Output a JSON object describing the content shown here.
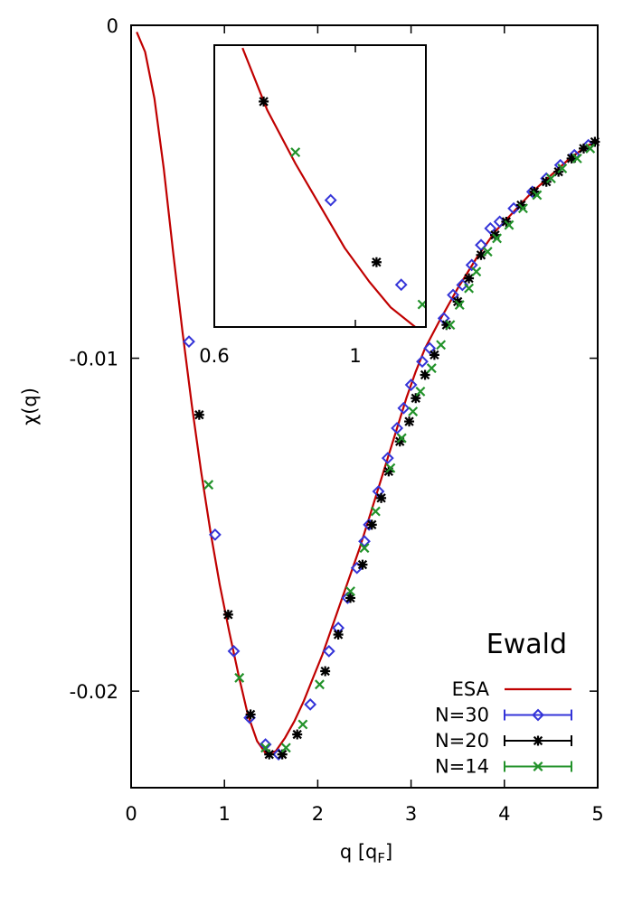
{
  "chart_data": {
    "type": "scatter",
    "title": "",
    "xlabel": "q [q",
    "xlabel_sub": "F",
    "xlabel_close": "]",
    "ylabel": "χ(q)",
    "xlim": [
      0,
      5
    ],
    "ylim": [
      -0.0229,
      0
    ],
    "x_ticks": [
      0,
      1,
      2,
      3,
      4,
      5
    ],
    "x_tick_labels": [
      "0",
      "1",
      "2",
      "3",
      "4",
      "5"
    ],
    "y_ticks": [
      0,
      -0.01,
      -0.02
    ],
    "y_tick_labels": [
      "0",
      "-0.01",
      "-0.02"
    ],
    "annotation": "Ewald",
    "legend": [
      {
        "label": "ESA",
        "marker": "line",
        "color": "#c00000"
      },
      {
        "label": "N=30",
        "marker": "diamond",
        "color": "#3434d8"
      },
      {
        "label": "N=20",
        "marker": "asterisk",
        "color": "#000000"
      },
      {
        "label": "N=14",
        "marker": "cross",
        "color": "#22922a"
      }
    ],
    "curve": {
      "name": "ESA",
      "color": "#c00000",
      "x": [
        0.06,
        0.15,
        0.25,
        0.35,
        0.45,
        0.55,
        0.65,
        0.75,
        0.85,
        0.95,
        1.05,
        1.15,
        1.25,
        1.35,
        1.45,
        1.55,
        1.65,
        1.75,
        1.85,
        1.95,
        2.05,
        2.15,
        2.25,
        2.35,
        2.45,
        2.55,
        2.65,
        2.75,
        2.85,
        2.95,
        3.05,
        3.15,
        3.3,
        3.5,
        3.7,
        3.9,
        4.1,
        4.3,
        4.5,
        4.7,
        4.9,
        5.0
      ],
      "y": [
        -0.0002,
        -0.0008,
        -0.0022,
        -0.0043,
        -0.0068,
        -0.0092,
        -0.0114,
        -0.0134,
        -0.0152,
        -0.0168,
        -0.0182,
        -0.0195,
        -0.0207,
        -0.0215,
        -0.0219,
        -0.0218,
        -0.0214,
        -0.0209,
        -0.0203,
        -0.0196,
        -0.0189,
        -0.0181,
        -0.0173,
        -0.0165,
        -0.0157,
        -0.0148,
        -0.0139,
        -0.013,
        -0.0121,
        -0.0112,
        -0.0104,
        -0.0097,
        -0.0089,
        -0.0079,
        -0.007,
        -0.0062,
        -0.0056,
        -0.005,
        -0.0045,
        -0.004,
        -0.0036,
        -0.0035
      ]
    },
    "series": [
      {
        "name": "N=30",
        "marker": "diamond",
        "color": "#3434d8",
        "x": [
          0.62,
          0.9,
          1.1,
          1.27,
          1.44,
          1.58,
          1.92,
          2.12,
          2.22,
          2.32,
          2.42,
          2.5,
          2.55,
          2.65,
          2.75,
          2.85,
          2.92,
          3.0,
          3.12,
          3.2,
          3.35,
          3.45,
          3.55,
          3.65,
          3.75,
          3.85,
          3.95,
          4.1,
          4.3,
          4.45,
          4.6,
          4.75,
          4.9
        ],
        "y": [
          -0.0095,
          -0.0153,
          -0.0188,
          -0.0208,
          -0.0216,
          -0.0219,
          -0.0204,
          -0.0188,
          -0.0181,
          -0.0172,
          -0.0163,
          -0.0155,
          -0.015,
          -0.014,
          -0.013,
          -0.0121,
          -0.0115,
          -0.0108,
          -0.0101,
          -0.0097,
          -0.0088,
          -0.0081,
          -0.0078,
          -0.0072,
          -0.0066,
          -0.0061,
          -0.0059,
          -0.0055,
          -0.005,
          -0.0046,
          -0.0042,
          -0.0039,
          -0.0036
        ]
      },
      {
        "name": "N=20",
        "marker": "asterisk",
        "color": "#000000",
        "x": [
          0.73,
          1.04,
          1.28,
          1.48,
          1.62,
          1.78,
          2.08,
          2.22,
          2.35,
          2.48,
          2.58,
          2.68,
          2.76,
          2.88,
          2.98,
          3.05,
          3.15,
          3.25,
          3.38,
          3.5,
          3.62,
          3.75,
          3.9,
          4.02,
          4.18,
          4.32,
          4.45,
          4.58,
          4.72,
          4.85,
          4.97
        ],
        "y": [
          -0.0117,
          -0.0177,
          -0.0207,
          -0.0219,
          -0.0219,
          -0.0213,
          -0.0194,
          -0.0183,
          -0.0172,
          -0.0162,
          -0.015,
          -0.0142,
          -0.0134,
          -0.0125,
          -0.0119,
          -0.0112,
          -0.0105,
          -0.0099,
          -0.009,
          -0.0083,
          -0.0076,
          -0.0069,
          -0.0063,
          -0.0059,
          -0.0054,
          -0.005,
          -0.0047,
          -0.0044,
          -0.004,
          -0.0037,
          -0.0035
        ]
      },
      {
        "name": "N=14",
        "marker": "cross",
        "color": "#22922a",
        "x": [
          0.83,
          1.16,
          1.44,
          1.66,
          1.84,
          2.02,
          2.35,
          2.5,
          2.62,
          2.78,
          2.9,
          3.02,
          3.1,
          3.22,
          3.32,
          3.42,
          3.52,
          3.62,
          3.7,
          3.82,
          3.92,
          4.05,
          4.2,
          4.35,
          4.5,
          4.62,
          4.78,
          4.92
        ],
        "y": [
          -0.0138,
          -0.0196,
          -0.0217,
          -0.0217,
          -0.021,
          -0.0198,
          -0.017,
          -0.0157,
          -0.0146,
          -0.0133,
          -0.0124,
          -0.0116,
          -0.011,
          -0.0103,
          -0.0096,
          -0.009,
          -0.0084,
          -0.0079,
          -0.0074,
          -0.0068,
          -0.0064,
          -0.006,
          -0.0055,
          -0.0051,
          -0.0046,
          -0.0043,
          -0.004,
          -0.0037
        ]
      }
    ],
    "inset": {
      "xlim": [
        0.6,
        1.2
      ],
      "ylim": [
        -0.019,
        -0.009
      ],
      "x_ticks": [
        0.6,
        1
      ],
      "x_tick_labels": [
        "0.6",
        "1"
      ],
      "curve_x": [
        0.68,
        0.75,
        0.83,
        0.9,
        0.97,
        1.04,
        1.1,
        1.2
      ],
      "curve_y": [
        -0.0091,
        -0.0113,
        -0.0132,
        -0.0147,
        -0.0162,
        -0.0174,
        -0.0183,
        -0.0193
      ],
      "points": [
        {
          "series": "N=20",
          "x": 0.74,
          "y": -0.011
        },
        {
          "series": "N=14",
          "x": 0.83,
          "y": -0.0128
        },
        {
          "series": "N=30",
          "x": 0.93,
          "y": -0.0145
        },
        {
          "series": "N=20",
          "x": 1.06,
          "y": -0.0167
        },
        {
          "series": "N=30",
          "x": 1.13,
          "y": -0.0175
        },
        {
          "series": "N=14",
          "x": 1.19,
          "y": -0.0182
        }
      ]
    }
  }
}
